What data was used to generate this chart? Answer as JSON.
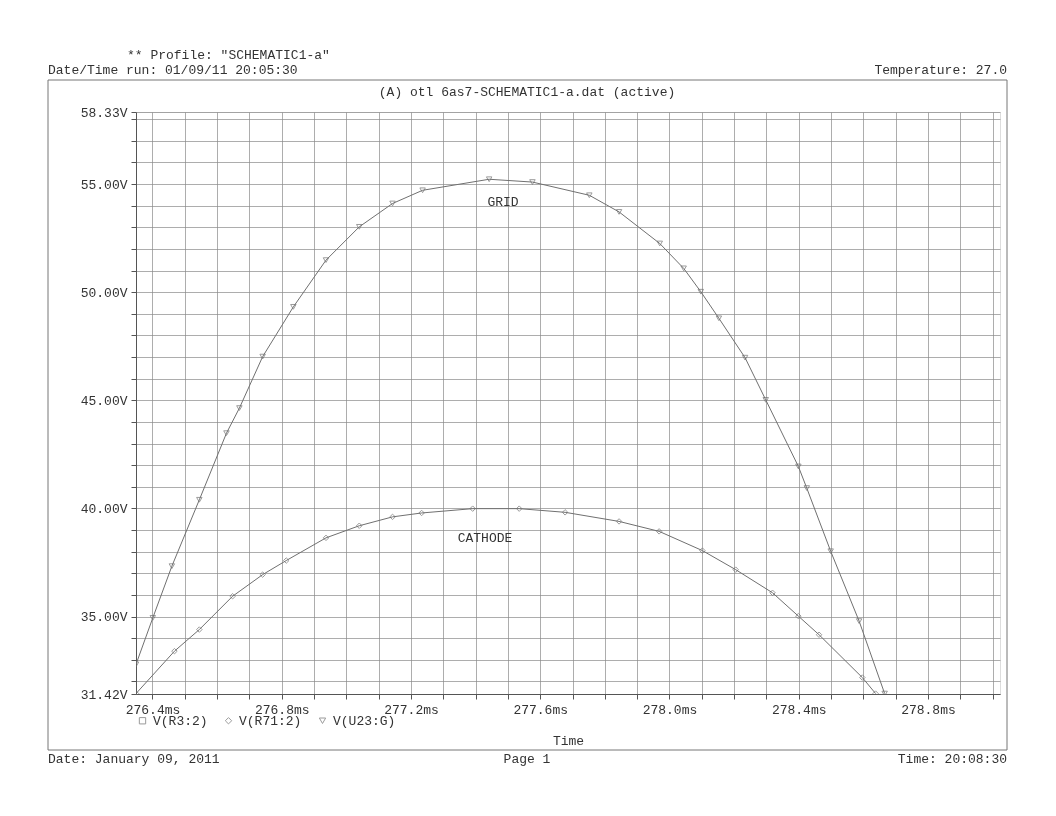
{
  "chart_data": {
    "type": "line",
    "title": "** Profile: \"SCHEMATIC1-a\"",
    "subtitle": "(A) otl 6as7-SCHEMATIC1-a.dat (active)",
    "xlabel": "Time",
    "annotations": [
      "Date/Time run: 01/09/11 20:05:30",
      "Temperature: 27.0",
      "Date: January 09, 2011",
      "Page 1",
      "Time: 20:08:30",
      "GRID",
      "CATHODE"
    ],
    "xlim": [
      276.349,
      279.023
    ],
    "xticks": [
      {
        "value": 276.4,
        "label": "276.4ms"
      },
      {
        "value": 276.5,
        "label": null
      },
      {
        "value": 276.6,
        "label": null
      },
      {
        "value": 276.7,
        "label": null
      },
      {
        "value": 276.8,
        "label": "276.8ms"
      },
      {
        "value": 276.9,
        "label": null
      },
      {
        "value": 277.0,
        "label": null
      },
      {
        "value": 277.1,
        "label": null
      },
      {
        "value": 277.2,
        "label": "277.2ms"
      },
      {
        "value": 277.3,
        "label": null
      },
      {
        "value": 277.4,
        "label": null
      },
      {
        "value": 277.5,
        "label": null
      },
      {
        "value": 277.6,
        "label": "277.6ms"
      },
      {
        "value": 277.7,
        "label": null
      },
      {
        "value": 277.8,
        "label": null
      },
      {
        "value": 277.9,
        "label": null
      },
      {
        "value": 278.0,
        "label": "278.0ms"
      },
      {
        "value": 278.1,
        "label": null
      },
      {
        "value": 278.2,
        "label": null
      },
      {
        "value": 278.3,
        "label": null
      },
      {
        "value": 278.4,
        "label": "278.4ms"
      },
      {
        "value": 278.5,
        "label": null
      },
      {
        "value": 278.6,
        "label": null
      },
      {
        "value": 278.7,
        "label": null
      },
      {
        "value": 278.8,
        "label": "278.8ms"
      },
      {
        "value": 278.9,
        "label": null
      },
      {
        "value": 279.0,
        "label": null
      }
    ],
    "ylim": [
      31.42,
      58.33
    ],
    "yticks": [
      {
        "value": 31.42,
        "label": "31.42V"
      },
      {
        "value": 32,
        "label": null
      },
      {
        "value": 33,
        "label": null
      },
      {
        "value": 34,
        "label": null
      },
      {
        "value": 35,
        "label": "35.00V"
      },
      {
        "value": 36,
        "label": null
      },
      {
        "value": 37,
        "label": null
      },
      {
        "value": 38,
        "label": null
      },
      {
        "value": 39,
        "label": null
      },
      {
        "value": 40,
        "label": "40.00V"
      },
      {
        "value": 41,
        "label": null
      },
      {
        "value": 42,
        "label": null
      },
      {
        "value": 43,
        "label": null
      },
      {
        "value": 44,
        "label": null
      },
      {
        "value": 45,
        "label": "45.00V"
      },
      {
        "value": 46,
        "label": null
      },
      {
        "value": 47,
        "label": null
      },
      {
        "value": 48,
        "label": null
      },
      {
        "value": 49,
        "label": null
      },
      {
        "value": 50,
        "label": "50.00V"
      },
      {
        "value": 51,
        "label": null
      },
      {
        "value": 52,
        "label": null
      },
      {
        "value": 53,
        "label": null
      },
      {
        "value": 54,
        "label": null
      },
      {
        "value": 55,
        "label": "55.00V"
      },
      {
        "value": 56,
        "label": null
      },
      {
        "value": 57,
        "label": null
      },
      {
        "value": 58,
        "label": null
      },
      {
        "value": 58.33,
        "label": "58.33V"
      }
    ],
    "grid": true,
    "legend": "bottom left",
    "line_style": "solid",
    "series": [
      {
        "name": "V(R3:2)",
        "color": "#707070",
        "marker": "square"
      },
      {
        "name": "V(R71:2)",
        "color": "#707070",
        "marker": "diamond",
        "x": [
          276.349,
          276.468,
          276.545,
          276.648,
          276.741,
          276.814,
          276.937,
          277.04,
          277.143,
          277.233,
          277.391,
          277.535,
          277.677,
          277.844,
          277.968,
          278.102,
          278.205,
          278.319,
          278.399,
          278.463,
          278.597,
          278.638
        ],
        "values": [
          31.44,
          33.4,
          34.4,
          35.94,
          36.94,
          37.59,
          38.64,
          39.2,
          39.61,
          39.79,
          39.99,
          39.99,
          39.82,
          39.4,
          38.94,
          38.05,
          37.17,
          36.1,
          35.02,
          34.16,
          32.18,
          31.44
        ]
      },
      {
        "name": "V(U23:G)",
        "color": "#707070",
        "marker": "triangle",
        "x": [
          276.349,
          276.401,
          276.46,
          276.545,
          276.629,
          276.669,
          276.741,
          276.836,
          276.937,
          277.04,
          277.143,
          277.236,
          277.442,
          277.576,
          277.752,
          277.844,
          277.97,
          278.044,
          278.097,
          278.153,
          278.234,
          278.298,
          278.399,
          278.425,
          278.499,
          278.587,
          278.666
        ],
        "values": [
          32.79,
          34.94,
          37.33,
          40.4,
          43.48,
          44.64,
          47.02,
          49.32,
          51.48,
          53.02,
          54.1,
          54.71,
          55.22,
          55.09,
          54.48,
          53.71,
          52.25,
          51.1,
          50.02,
          48.79,
          46.97,
          45.02,
          41.94,
          40.94,
          38.02,
          34.79,
          31.44
        ]
      }
    ]
  }
}
